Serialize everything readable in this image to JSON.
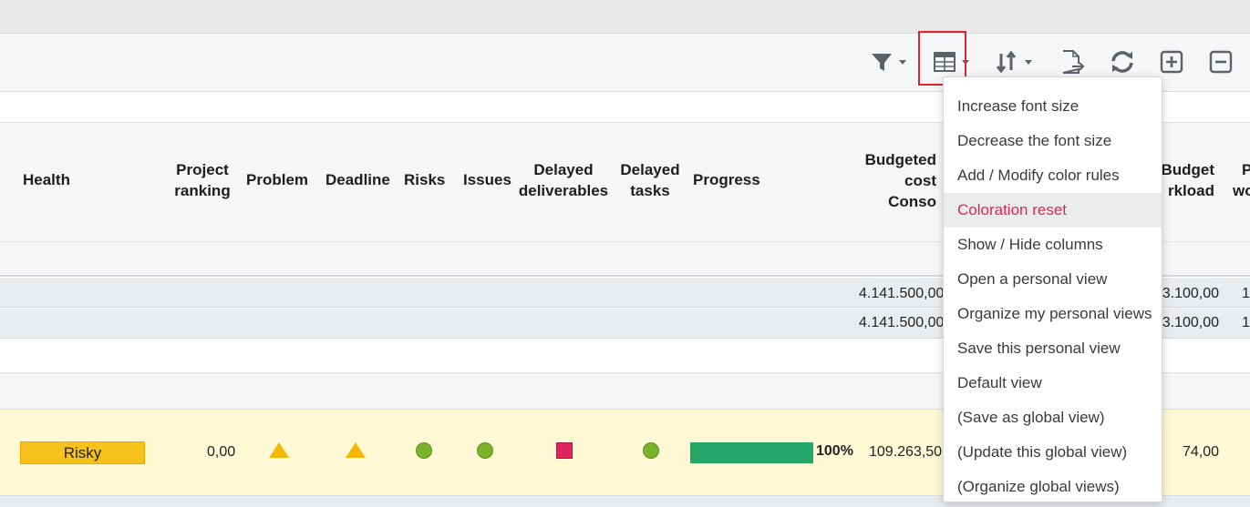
{
  "toolbar": {
    "icons": [
      "filter-icon",
      "table-icon",
      "sort-icon",
      "export-icon",
      "refresh-icon",
      "expand-all-icon",
      "collapse-all-icon"
    ],
    "highlight_color": "#e0262d"
  },
  "columns": {
    "health": "Health",
    "project_ranking_1": "Project",
    "project_ranking_2": "ranking",
    "problem": "Problem",
    "deadline": "Deadline",
    "risks": "Risks",
    "issues": "Issues",
    "delayed_deliverables_1": "Delayed",
    "delayed_deliverables_2": "deliverables",
    "delayed_tasks_1": "Delayed",
    "delayed_tasks_2": "tasks",
    "progress": "Progress",
    "budgeted_cost_1": "Budgeted",
    "budgeted_cost_2": "cost",
    "budgeted_cost_3": "Conso",
    "budget_workload_1": "Budget",
    "budget_workload_2": "rkload",
    "partial_col_1": "P",
    "partial_col_2": "wo"
  },
  "totals": [
    {
      "budgeted_cost": "4.141.500,00",
      "budget_workload": "3.100,00",
      "partial": "1"
    },
    {
      "budgeted_cost": "4.141.500,00",
      "budget_workload": "3.100,00",
      "partial": "1"
    }
  ],
  "row": {
    "health": "Risky",
    "project_ranking": "0,00",
    "problem": "warning-triangle",
    "deadline": "warning-triangle",
    "risks": "green-dot",
    "issues": "green-dot",
    "delayed_deliverables": "red-square",
    "delayed_tasks": "green-dot",
    "progress_value": 100,
    "progress_label": "100%",
    "budgeted_cost": "109.263,50",
    "budget_workload": "74,00"
  },
  "menu": {
    "items": [
      "Increase font size",
      "Decrease the font size",
      "Add / Modify color rules",
      "Coloration reset",
      "Show / Hide columns",
      "Open a personal view",
      "Organize my personal views",
      "Save this personal view",
      "Default view",
      "(Save as global view)",
      "(Update this global view)",
      "(Organize global views)"
    ],
    "active_index": 3
  },
  "colors": {
    "health_risky": "#f7c21b",
    "progress": "#23a667",
    "ok_dot": "#7ab229",
    "late_square": "#e0245e",
    "warning": "#f5b800",
    "menu_active_text": "#e3264f"
  }
}
